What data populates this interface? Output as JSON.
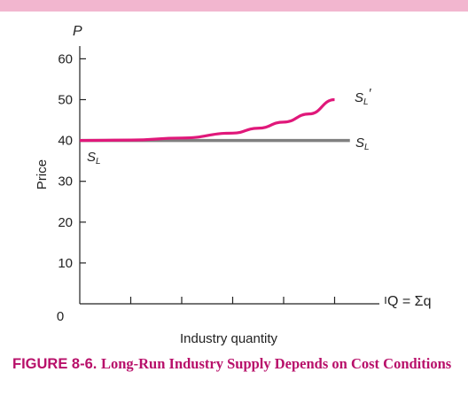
{
  "chart_data": {
    "type": "line",
    "y_axis_symbol": "P",
    "x_axis_symbol": "Q = Σq",
    "ylabel": "Price",
    "xlabel": "Industry quantity",
    "ylim": [
      0,
      65
    ],
    "xlim": [
      0,
      7
    ],
    "y_ticks": [
      10,
      20,
      30,
      40,
      50,
      60
    ],
    "x_ticks": [
      1,
      2,
      3,
      4,
      5,
      6
    ],
    "origin_label": "0",
    "series": [
      {
        "name": "S_L",
        "label_main": "S",
        "label_sub": "L",
        "color": "#808080",
        "x": [
          0,
          5.3
        ],
        "y": [
          40,
          40
        ]
      },
      {
        "name": "S_L'",
        "label_main": "S",
        "label_sub": "L",
        "label_prime": "′",
        "color": "#e0187a",
        "x": [
          0,
          1,
          2,
          3,
          3.5,
          4,
          4.5,
          5.0
        ],
        "y": [
          40,
          40.1,
          40.6,
          41.8,
          43,
          44.5,
          46.5,
          50
        ]
      }
    ],
    "series_labels": {
      "flat_left": {
        "main": "S",
        "sub": "L"
      },
      "flat_right": {
        "main": "S",
        "sub": "L"
      },
      "curve": {
        "main": "S",
        "sub": "L",
        "prime": "′"
      }
    },
    "grid": false
  },
  "caption": {
    "figure_number": "FIGURE 8-6.",
    "title": "Long-Run Industry Supply Depends on Cost Conditions"
  }
}
